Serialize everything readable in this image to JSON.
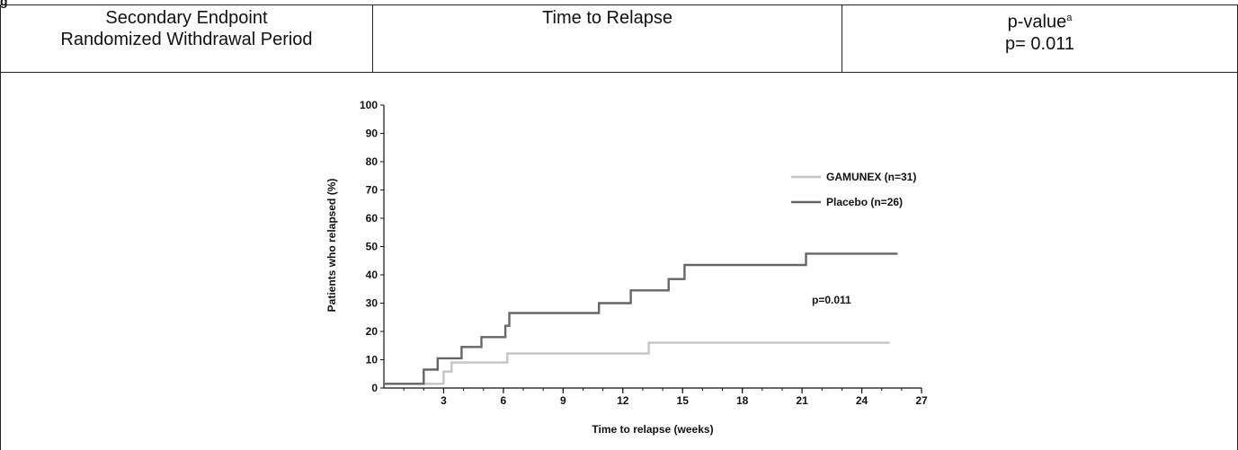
{
  "figure_letter": "g",
  "table": {
    "col1_line1": "Secondary Endpoint",
    "col1_line2": "Randomized Withdrawal Period",
    "col2": "Time to Relapse",
    "col3_label": "p-value",
    "col3_sup": "a",
    "col3_value": "p= 0.011"
  },
  "chart_data": {
    "type": "line",
    "xlabel": "Time to relapse (weeks)",
    "ylabel": "Patients who relapsed (%)",
    "xlim": [
      0,
      27
    ],
    "ylim": [
      0,
      100
    ],
    "xticks": [
      3,
      6,
      9,
      12,
      15,
      18,
      21,
      24,
      27
    ],
    "yticks": [
      0,
      10,
      20,
      30,
      40,
      50,
      60,
      70,
      80,
      90,
      100
    ],
    "annotation": "p=0.011",
    "legend_position": "right",
    "series": [
      {
        "name": "GAMUNEX (n=31)",
        "color": "#c4c4c4",
        "step": [
          [
            0,
            1.5
          ],
          [
            3.0,
            1.5
          ],
          [
            3.0,
            5.8
          ],
          [
            3.4,
            5.8
          ],
          [
            3.4,
            9.0
          ],
          [
            6.2,
            9.0
          ],
          [
            6.2,
            12.2
          ],
          [
            13.3,
            12.2
          ],
          [
            13.3,
            16.0
          ],
          [
            25.4,
            16.0
          ]
        ]
      },
      {
        "name": "Placebo (n=26)",
        "color": "#666666",
        "step": [
          [
            0,
            1.5
          ],
          [
            2.0,
            1.5
          ],
          [
            2.0,
            6.5
          ],
          [
            2.7,
            6.5
          ],
          [
            2.7,
            10.5
          ],
          [
            3.9,
            10.5
          ],
          [
            3.9,
            14.5
          ],
          [
            4.9,
            14.5
          ],
          [
            4.9,
            18.0
          ],
          [
            6.1,
            18.0
          ],
          [
            6.1,
            22.0
          ],
          [
            6.3,
            22.0
          ],
          [
            6.3,
            26.5
          ],
          [
            10.8,
            26.5
          ],
          [
            10.8,
            30.0
          ],
          [
            12.4,
            30.0
          ],
          [
            12.4,
            34.5
          ],
          [
            14.3,
            34.5
          ],
          [
            14.3,
            38.5
          ],
          [
            15.1,
            38.5
          ],
          [
            15.1,
            43.5
          ],
          [
            21.2,
            43.5
          ],
          [
            21.2,
            47.5
          ],
          [
            25.8,
            47.5
          ]
        ]
      }
    ]
  }
}
